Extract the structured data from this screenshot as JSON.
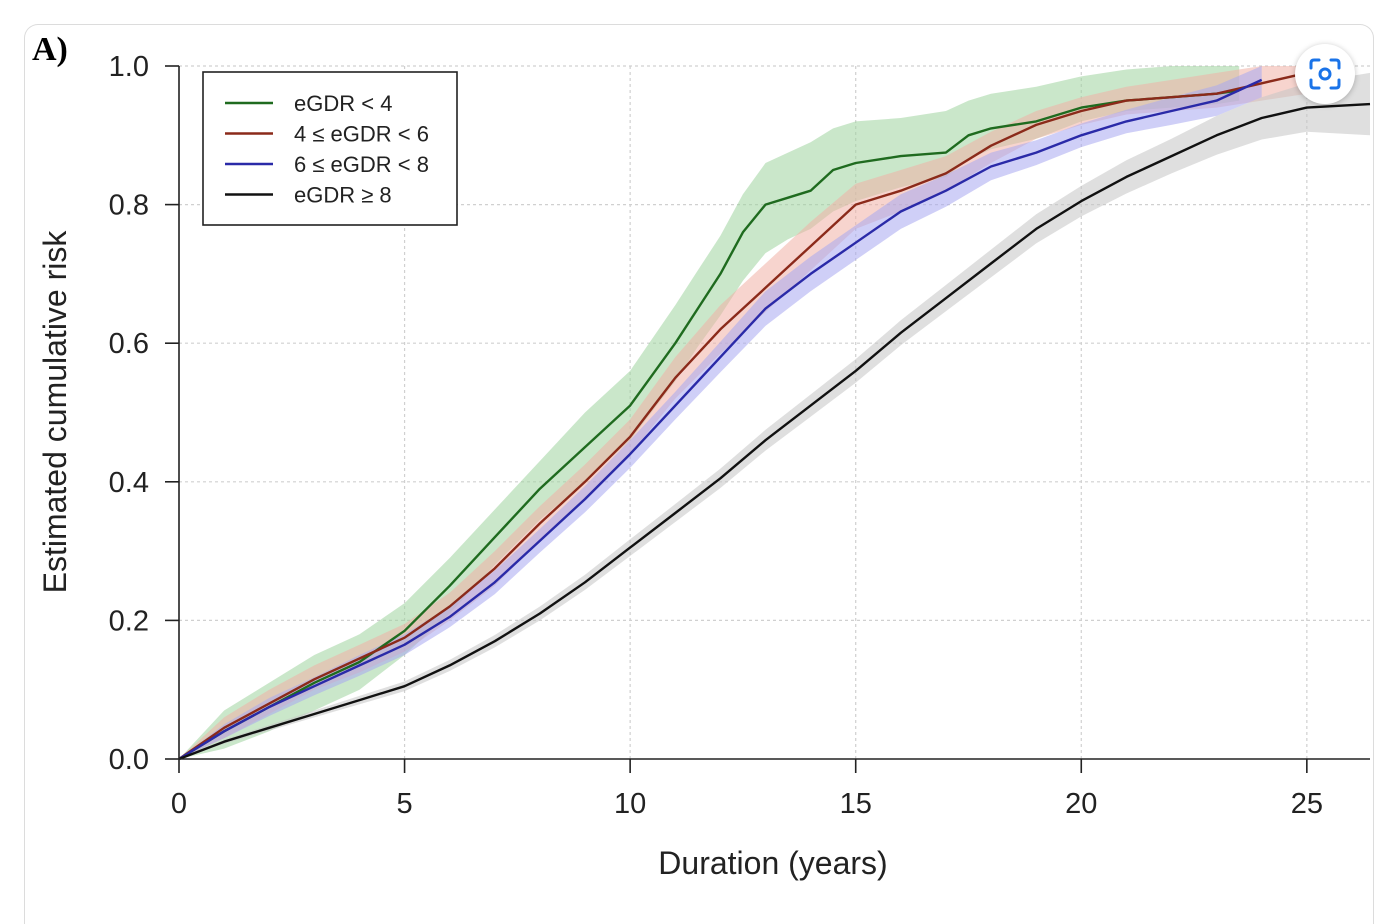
{
  "panel_label": "A)",
  "controls": {
    "lens_icon": "visual-search-icon"
  },
  "chart_data": {
    "type": "line",
    "title": "",
    "xlabel": "Duration (years)",
    "ylabel": "Estimated cumulative risk",
    "xlim": [
      0,
      26.4
    ],
    "ylim": [
      0,
      1.0
    ],
    "xticks": [
      0,
      5,
      10,
      15,
      20,
      25
    ],
    "yticks": [
      0.0,
      0.2,
      0.4,
      0.6,
      0.8,
      1.0
    ],
    "xtick_labels": [
      "0",
      "5",
      "10",
      "15",
      "20",
      "25"
    ],
    "ytick_labels": [
      "0.0",
      "0.2",
      "0.4",
      "0.6",
      "0.8",
      "1.0"
    ],
    "grid": true,
    "legend_position": "top-left",
    "series": [
      {
        "name": "eGDR < 4",
        "color": "#1f6b1f",
        "band_color": "#9fd39f",
        "x": [
          0,
          1,
          2,
          3,
          4,
          5,
          6,
          7,
          8,
          9,
          10,
          11,
          11.5,
          12,
          12.5,
          13,
          13.5,
          14,
          14.5,
          15,
          16,
          17,
          17.5,
          18,
          19,
          20,
          21,
          22,
          23,
          23.5
        ],
        "y": [
          0,
          0.04,
          0.075,
          0.11,
          0.14,
          0.185,
          0.25,
          0.32,
          0.39,
          0.45,
          0.51,
          0.6,
          0.65,
          0.7,
          0.76,
          0.8,
          0.81,
          0.82,
          0.85,
          0.86,
          0.87,
          0.875,
          0.9,
          0.91,
          0.92,
          0.94,
          0.95,
          0.955,
          0.96,
          0.965
        ],
        "lower": [
          0,
          0.015,
          0.04,
          0.07,
          0.1,
          0.15,
          0.21,
          0.28,
          0.345,
          0.4,
          0.46,
          0.545,
          0.595,
          0.64,
          0.69,
          0.73,
          0.75,
          0.765,
          0.79,
          0.805,
          0.825,
          0.84,
          0.865,
          0.88,
          0.895,
          0.92,
          0.935,
          0.94,
          0.945,
          0.95
        ],
        "upper": [
          0,
          0.07,
          0.11,
          0.15,
          0.18,
          0.225,
          0.29,
          0.36,
          0.43,
          0.5,
          0.56,
          0.655,
          0.705,
          0.755,
          0.815,
          0.86,
          0.875,
          0.89,
          0.91,
          0.92,
          0.925,
          0.935,
          0.95,
          0.96,
          0.97,
          0.985,
          0.995,
          1.0,
          1.0,
          1.0
        ]
      },
      {
        "name": "4 ≤ eGDR < 6",
        "color": "#8b2a1a",
        "band_color": "#f0b0a6",
        "x": [
          0,
          1,
          2,
          3,
          4,
          5,
          6,
          7,
          8,
          9,
          10,
          11,
          12,
          13,
          14,
          15,
          16,
          17,
          18,
          19,
          20,
          21,
          22,
          23,
          24,
          25
        ],
        "y": [
          0,
          0.045,
          0.08,
          0.115,
          0.145,
          0.175,
          0.22,
          0.275,
          0.34,
          0.4,
          0.465,
          0.55,
          0.62,
          0.68,
          0.74,
          0.8,
          0.82,
          0.845,
          0.885,
          0.915,
          0.935,
          0.95,
          0.955,
          0.96,
          0.975,
          0.99
        ],
        "lower": [
          0,
          0.03,
          0.065,
          0.1,
          0.125,
          0.155,
          0.2,
          0.25,
          0.315,
          0.375,
          0.44,
          0.52,
          0.585,
          0.645,
          0.705,
          0.765,
          0.79,
          0.82,
          0.86,
          0.895,
          0.915,
          0.93,
          0.935,
          0.94,
          0.95,
          0.96
        ],
        "upper": [
          0,
          0.06,
          0.1,
          0.135,
          0.165,
          0.195,
          0.24,
          0.3,
          0.365,
          0.425,
          0.49,
          0.58,
          0.655,
          0.715,
          0.775,
          0.83,
          0.85,
          0.87,
          0.905,
          0.935,
          0.955,
          0.97,
          0.98,
          0.99,
          1.0,
          1.0
        ]
      },
      {
        "name": "6 ≤ eGDR < 8",
        "color": "#2a2aa8",
        "band_color": "#a8a8f0",
        "x": [
          0,
          1,
          2,
          3,
          4,
          5,
          6,
          7,
          8,
          9,
          10,
          11,
          12,
          13,
          14,
          15,
          16,
          17,
          18,
          19,
          20,
          21,
          22,
          23,
          24
        ],
        "y": [
          0,
          0.04,
          0.075,
          0.105,
          0.135,
          0.165,
          0.205,
          0.255,
          0.315,
          0.375,
          0.44,
          0.51,
          0.58,
          0.65,
          0.7,
          0.745,
          0.79,
          0.82,
          0.855,
          0.875,
          0.9,
          0.92,
          0.935,
          0.95,
          0.98
        ],
        "lower": [
          0,
          0.03,
          0.062,
          0.092,
          0.12,
          0.15,
          0.19,
          0.238,
          0.298,
          0.356,
          0.42,
          0.49,
          0.558,
          0.625,
          0.675,
          0.72,
          0.765,
          0.797,
          0.835,
          0.857,
          0.883,
          0.903,
          0.915,
          0.928,
          0.955
        ],
        "upper": [
          0,
          0.05,
          0.088,
          0.118,
          0.15,
          0.18,
          0.22,
          0.272,
          0.332,
          0.394,
          0.46,
          0.53,
          0.602,
          0.675,
          0.725,
          0.77,
          0.815,
          0.843,
          0.875,
          0.893,
          0.917,
          0.937,
          0.955,
          0.972,
          1.0
        ]
      },
      {
        "name": "eGDR ≥ 8",
        "color": "#111111",
        "band_color": "#c4c4c4",
        "x": [
          0,
          1,
          2,
          3,
          4,
          5,
          6,
          7,
          8,
          9,
          10,
          11,
          12,
          13,
          14,
          15,
          16,
          17,
          18,
          19,
          20,
          21,
          22,
          23,
          24,
          25,
          26.4
        ],
        "y": [
          0,
          0.025,
          0.045,
          0.065,
          0.085,
          0.105,
          0.135,
          0.17,
          0.21,
          0.255,
          0.305,
          0.355,
          0.405,
          0.46,
          0.51,
          0.56,
          0.615,
          0.665,
          0.715,
          0.765,
          0.805,
          0.84,
          0.87,
          0.9,
          0.925,
          0.94,
          0.945
        ],
        "lower": [
          0,
          0.022,
          0.041,
          0.06,
          0.079,
          0.098,
          0.127,
          0.161,
          0.2,
          0.244,
          0.293,
          0.342,
          0.391,
          0.445,
          0.494,
          0.543,
          0.597,
          0.646,
          0.695,
          0.744,
          0.783,
          0.816,
          0.845,
          0.872,
          0.894,
          0.905,
          0.9
        ],
        "upper": [
          0,
          0.028,
          0.049,
          0.07,
          0.091,
          0.112,
          0.143,
          0.179,
          0.22,
          0.266,
          0.317,
          0.368,
          0.419,
          0.475,
          0.526,
          0.577,
          0.633,
          0.684,
          0.735,
          0.786,
          0.827,
          0.864,
          0.895,
          0.928,
          0.955,
          0.975,
          0.99
        ]
      }
    ]
  }
}
